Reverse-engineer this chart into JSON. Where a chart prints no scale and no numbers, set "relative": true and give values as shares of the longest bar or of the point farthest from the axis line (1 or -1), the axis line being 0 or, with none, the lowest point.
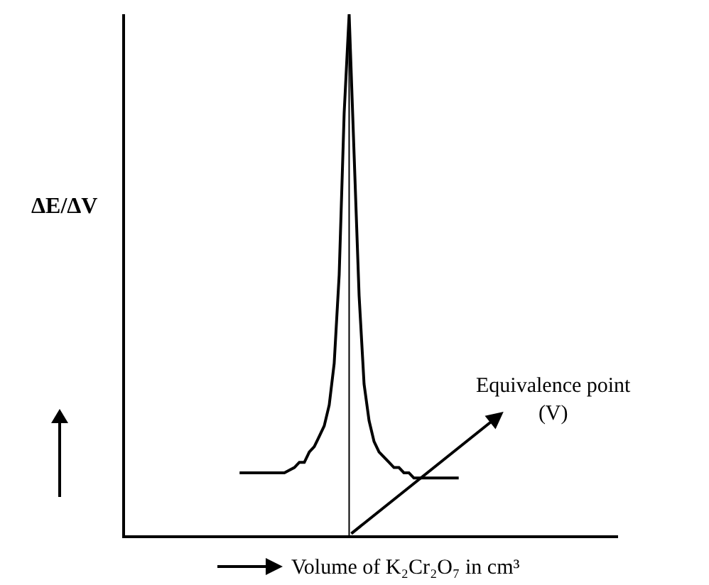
{
  "chart_data": {
    "type": "line",
    "relative": true,
    "color": "#000000",
    "xlabel": "Volume of K₂Cr₂O₇ in cm³",
    "ylabel": "ΔE/ΔV",
    "annotations": [
      "Equivalence point\n(V)"
    ],
    "categories": [
      null,
      null,
      null,
      null,
      null,
      null,
      null,
      null,
      null,
      null,
      null,
      null,
      null,
      null,
      null,
      null,
      null,
      null,
      null,
      null,
      null,
      null,
      null,
      null,
      null,
      null,
      null,
      null,
      null,
      null,
      null,
      null,
      null,
      null,
      null,
      null,
      null,
      null,
      null,
      null,
      null,
      null,
      null,
      null,
      null,
      null,
      null,
      null,
      null,
      null,
      null,
      null,
      null,
      null,
      null,
      null,
      null,
      null,
      null,
      null,
      null,
      null,
      null,
      null,
      null,
      null,
      null,
      null,
      null,
      null,
      null,
      null,
      null,
      null,
      null,
      null,
      null,
      null,
      null,
      null,
      null,
      null,
      null,
      null,
      null,
      null,
      null,
      null,
      null,
      null,
      null,
      null,
      null,
      null,
      null,
      null,
      null,
      null,
      null,
      null
    ],
    "values": [
      null,
      null,
      null,
      null,
      null,
      null,
      null,
      null,
      null,
      null,
      null,
      null,
      null,
      null,
      null,
      null,
      null,
      null,
      null,
      null,
      null,
      null,
      null,
      0.12,
      0.12,
      0.12,
      0.12,
      0.12,
      0.12,
      0.12,
      0.12,
      0.12,
      0.12,
      0.125,
      0.13,
      0.14,
      0.14,
      0.16,
      0.17,
      0.19,
      0.21,
      0.25,
      0.33,
      0.5,
      0.81,
      1.0,
      0.73,
      0.46,
      0.29,
      0.22,
      0.18,
      0.16,
      0.15,
      0.14,
      0.13,
      0.13,
      0.12,
      0.12,
      0.11,
      0.11,
      0.11,
      0.11,
      0.11,
      0.11,
      0.11,
      0.11,
      0.11,
      0.11,
      null,
      null,
      null,
      null,
      null,
      null,
      null,
      null,
      null,
      null,
      null,
      null,
      null,
      null,
      null,
      null,
      null,
      null,
      null,
      null,
      null,
      null,
      null,
      null,
      null,
      null,
      null,
      null,
      null,
      null,
      null,
      null
    ]
  }
}
